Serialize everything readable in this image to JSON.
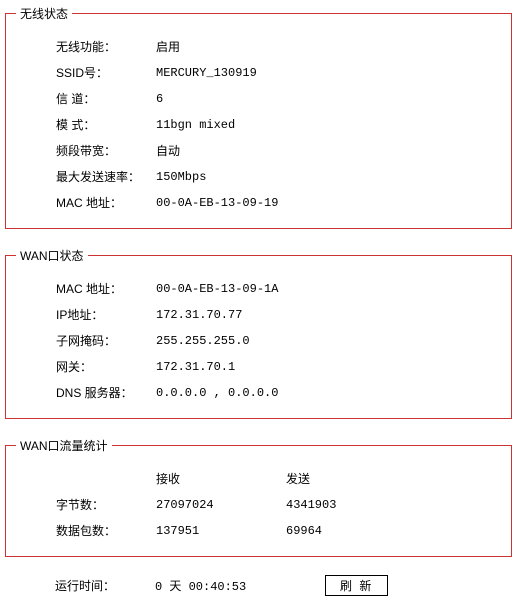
{
  "wireless": {
    "legend": "无线状态",
    "rows": [
      {
        "label": "无线功能：",
        "value": "启用",
        "mono": false
      },
      {
        "label": "SSID号：",
        "value": "MERCURY_130919",
        "mono": true
      },
      {
        "label": "信 道：",
        "value": "6",
        "mono": true
      },
      {
        "label": "模 式：",
        "value": "11bgn mixed",
        "mono": true
      },
      {
        "label": "频段带宽：",
        "value": "自动",
        "mono": false
      },
      {
        "label": "最大发送速率：",
        "value": "150Mbps",
        "mono": true
      },
      {
        "label": "MAC 地址：",
        "value": "00-0A-EB-13-09-19",
        "mono": true
      }
    ]
  },
  "wan": {
    "legend": "WAN口状态",
    "rows": [
      {
        "label": "MAC 地址：",
        "value": "00-0A-EB-13-09-1A",
        "mono": true
      },
      {
        "label": "IP地址：",
        "value": "172.31.70.77",
        "mono": true
      },
      {
        "label": "子网掩码：",
        "value": "255.255.255.0",
        "mono": true
      },
      {
        "label": "网关：",
        "value": "172.31.70.1",
        "mono": true
      },
      {
        "label": "DNS 服务器：",
        "value": "0.0.0.0 , 0.0.0.0",
        "mono": true
      }
    ]
  },
  "traffic": {
    "legend": "WAN口流量统计",
    "header": {
      "recv": "接收",
      "send": "发送"
    },
    "rows": [
      {
        "label": "字节数：",
        "recv": "27097024",
        "send": "4341903"
      },
      {
        "label": "数据包数：",
        "recv": "137951",
        "send": "69964"
      }
    ]
  },
  "uptime": {
    "label": "运行时间：",
    "value": "0 天 00:40:53",
    "refresh_label": "刷 新"
  },
  "styling": {
    "border_color": "#cc3333",
    "font_size": 12,
    "label_width": 100,
    "background": "#ffffff"
  }
}
